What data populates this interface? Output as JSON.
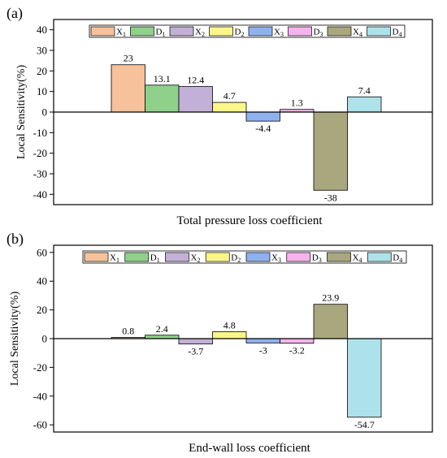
{
  "colors": {
    "X1": "#f7c29b",
    "D1": "#8fd18a",
    "X2": "#c3b0d6",
    "D2": "#fbf68a",
    "X3": "#8fb2ee",
    "D3": "#f7b3ee",
    "X4": "#a9a77d",
    "D4": "#aee2ea",
    "axis": "#000000"
  },
  "chart_data": [
    {
      "panel_label": "(a)",
      "type": "bar",
      "categories": [
        "X1",
        "D1",
        "X2",
        "D2",
        "X3",
        "D3",
        "X4",
        "D4"
      ],
      "legend": [
        {
          "base": "X",
          "sub": "1"
        },
        {
          "base": "D",
          "sub": "1"
        },
        {
          "base": "X",
          "sub": "2"
        },
        {
          "base": "D",
          "sub": "2"
        },
        {
          "base": "X",
          "sub": "3"
        },
        {
          "base": "D",
          "sub": "3"
        },
        {
          "base": "X",
          "sub": "4"
        },
        {
          "base": "D",
          "sub": "4"
        }
      ],
      "values": [
        23,
        13.1,
        12.4,
        4.7,
        -4.4,
        1.3,
        -38,
        7.4
      ],
      "value_labels": [
        "23",
        "13.1",
        "12.4",
        "4.7",
        "-4.4",
        "1.3",
        "-38",
        "7.4"
      ],
      "ylim": [
        -45,
        45
      ],
      "yticks": [
        -40,
        -30,
        -20,
        -10,
        0,
        10,
        20,
        30,
        40
      ],
      "ylabel": "Local Sensitivity(%)",
      "xlabel": "Total pressure loss coefficient",
      "legend_position": "top-center",
      "grid": false
    },
    {
      "panel_label": "(b)",
      "type": "bar",
      "categories": [
        "X1",
        "D1",
        "X2",
        "D2",
        "X3",
        "D3",
        "X4",
        "D4"
      ],
      "legend": [
        {
          "base": "X",
          "sub": "1"
        },
        {
          "base": "D",
          "sub": "1"
        },
        {
          "base": "X",
          "sub": "2"
        },
        {
          "base": "D",
          "sub": "2"
        },
        {
          "base": "X",
          "sub": "3"
        },
        {
          "base": "D",
          "sub": "3"
        },
        {
          "base": "X",
          "sub": "4"
        },
        {
          "base": "D",
          "sub": "4"
        }
      ],
      "values": [
        0.8,
        2.4,
        -3.7,
        4.8,
        -3,
        -3.2,
        23.9,
        -54.7
      ],
      "value_labels": [
        "0.8",
        "2.4",
        "-3.7",
        "4.8",
        "-3",
        "-3.2",
        "23.9",
        "-54.7"
      ],
      "ylim": [
        -65,
        65
      ],
      "yticks": [
        -60,
        -40,
        -20,
        0,
        20,
        40,
        60
      ],
      "ylabel": "Local Sensitivity(%)",
      "xlabel": "End-wall loss coefficient",
      "legend_position": "top-center",
      "grid": false
    }
  ]
}
